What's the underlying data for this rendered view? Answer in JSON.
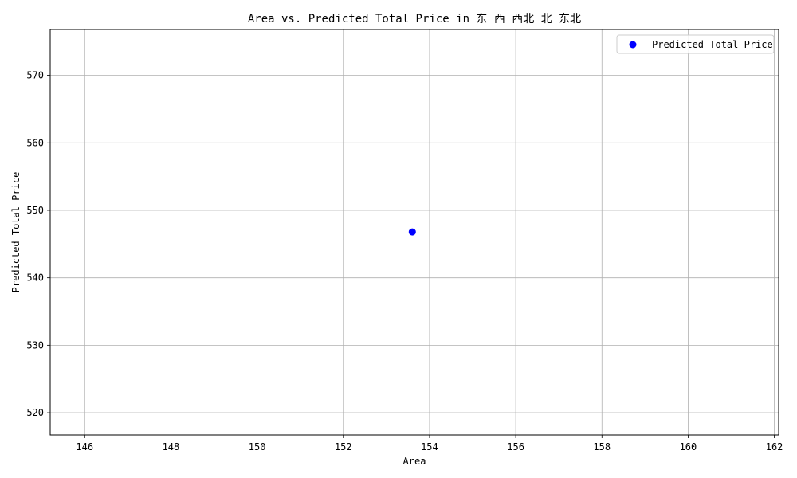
{
  "chart_data": {
    "type": "scatter",
    "title": "Area vs. Predicted Total Price in 东 西 西北 北 东北",
    "xlabel": "Area",
    "ylabel": "Predicted Total Price",
    "xlim": [
      145.2,
      162.1
    ],
    "ylim": [
      516.7,
      576.8
    ],
    "xticks": [
      146,
      148,
      150,
      152,
      154,
      156,
      158,
      160,
      162
    ],
    "yticks": [
      520,
      530,
      540,
      550,
      560,
      570
    ],
    "grid": true,
    "legend_position": "top-right",
    "series": [
      {
        "name": "Predicted Total Price",
        "color": "#0000ff",
        "points": [
          {
            "x": 153.6,
            "y": 546.8
          }
        ]
      }
    ]
  }
}
